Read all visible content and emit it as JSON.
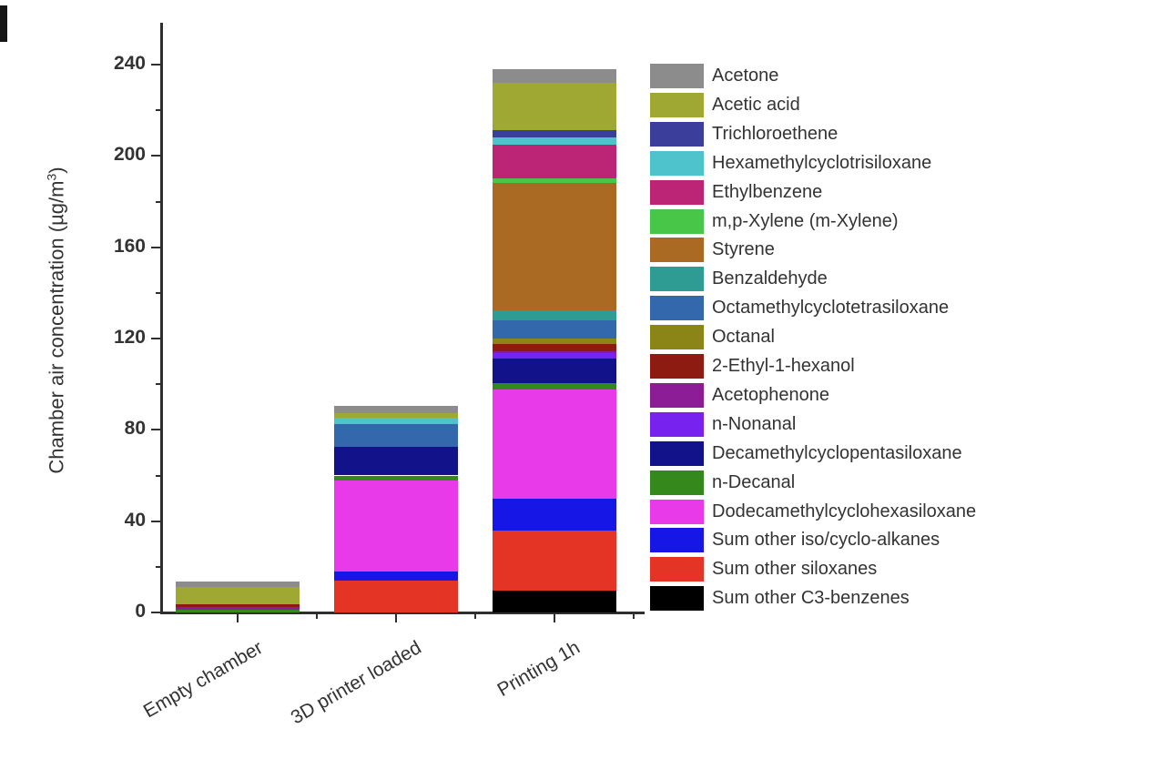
{
  "figure": {
    "ylabel_main": "Chamber air concentration (µg/m",
    "ylabel_sup": "3",
    "ylabel_close": ")"
  },
  "chart_data": {
    "type": "bar",
    "stacked": true,
    "title": "",
    "xlabel": "",
    "ylabel": "Chamber air concentration (µg/m³)",
    "ylim": [
      0,
      240
    ],
    "yticks_major": [
      0,
      40,
      80,
      120,
      160,
      200,
      240
    ],
    "yticks_minor": [
      20,
      60,
      100,
      140,
      180,
      220
    ],
    "grid": false,
    "legend_position": "right",
    "legend_order": "reverse of stacking order (Acetone listed first)",
    "categories": [
      "Empty chamber",
      "3D printer loaded",
      "Printing 1h"
    ],
    "series_bottom_to_top": [
      {
        "name": "Sum other C3-benzenes",
        "color": "#000000",
        "values": [
          0,
          0,
          9.5
        ]
      },
      {
        "name": "Sum other siloxanes",
        "color": "#e43425",
        "values": [
          0,
          14,
          26.5
        ]
      },
      {
        "name": "Sum other iso/cyclo-alkanes",
        "color": "#1616e7",
        "values": [
          0,
          4,
          14
        ]
      },
      {
        "name": "Dodecamethylcyclohexasiloxane",
        "color": "#e83ae8",
        "values": [
          0,
          40,
          47.5
        ]
      },
      {
        "name": "n-Decanal",
        "color": "#35891c",
        "values": [
          1,
          2,
          2.8
        ]
      },
      {
        "name": "Decamethylcyclopentasiloxane",
        "color": "#12128a",
        "values": [
          0,
          12.5,
          11
        ]
      },
      {
        "name": "n-Nonanal",
        "color": "#7722ee",
        "values": [
          0,
          0,
          2.4
        ]
      },
      {
        "name": "Acetophenone",
        "color": "#8c1d96",
        "values": [
          1.5,
          0,
          0.8
        ]
      },
      {
        "name": "2-Ethyl-1-hexanol",
        "color": "#8e1b12",
        "values": [
          1,
          0,
          3.2
        ]
      },
      {
        "name": "Octanal",
        "color": "#8b8518",
        "values": [
          0,
          0,
          2.2
        ]
      },
      {
        "name": "Octamethylcyclotetrasiloxane",
        "color": "#3468ad",
        "values": [
          0,
          10,
          8
        ]
      },
      {
        "name": "Benzaldehyde",
        "color": "#2f9c93",
        "values": [
          0,
          0,
          4.6
        ]
      },
      {
        "name": "Styrene",
        "color": "#ab6a23",
        "values": [
          0,
          0,
          55.8
        ]
      },
      {
        "name": "m,p-Xylene (m-Xylene)",
        "color": "#47c647",
        "values": [
          0,
          0,
          2
        ]
      },
      {
        "name": "Ethylbenzene",
        "color": "#bc2576",
        "values": [
          0,
          0,
          14.6
        ]
      },
      {
        "name": "Hexamethylcyclotrisiloxane",
        "color": "#4fc3cb",
        "values": [
          0,
          2.7,
          3.3
        ]
      },
      {
        "name": "Trichloroethene",
        "color": "#3b3f9b",
        "values": [
          0,
          0,
          3.2
        ]
      },
      {
        "name": "Acetic acid",
        "color": "#9fa832",
        "values": [
          7.5,
          2,
          20.6
        ]
      },
      {
        "name": "Acetone",
        "color": "#8c8c8c",
        "values": [
          2.5,
          3.3,
          6
        ]
      }
    ],
    "bar_totals": [
      13.5,
      90.5,
      238
    ]
  },
  "colors": {
    "background": "#ffffff",
    "axis": "#2f2f2f",
    "text": "#333333"
  }
}
